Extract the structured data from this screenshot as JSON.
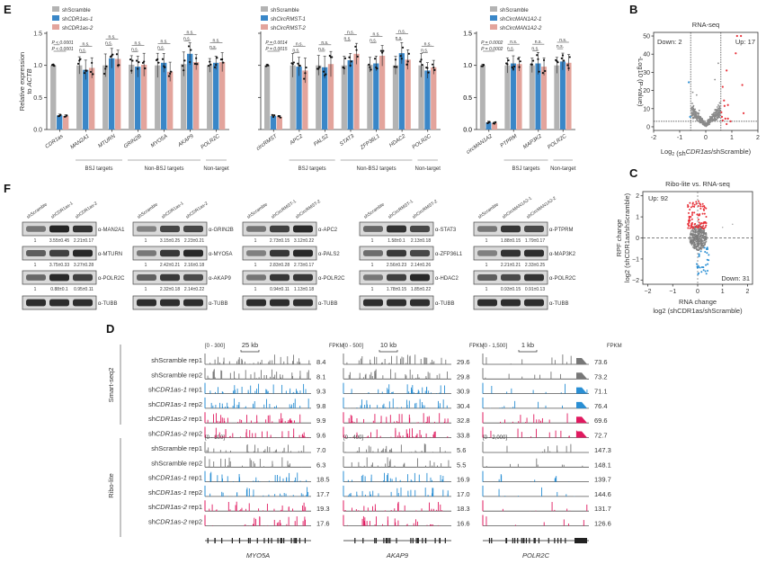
{
  "panels": {
    "E": "E",
    "B": "B",
    "C": "C",
    "F": "F",
    "D": "D"
  },
  "colors": {
    "scramble": "#b3b3b3",
    "kd1": "#3a87c8",
    "kd2": "#e3a49c",
    "up": "#e8323a",
    "down": "#2a8fd4",
    "ns": "#8a8a8a",
    "seq_kd1": "#2a8fd4",
    "seq_kd2": "#e0195f"
  },
  "chart_data": [
    {
      "id": "E1",
      "type": "bar",
      "ylabel": "Relative expression to ACTB",
      "ylabel_lines": [
        "Relative expression",
        "to ACTB"
      ],
      "ylim": [
        0,
        1.5
      ],
      "yticks": [
        "0.0",
        "0.5",
        "1.0",
        "1.5"
      ],
      "legend": [
        "shScramble",
        "shCDR1as-1",
        "shCDR1as-2"
      ],
      "categories": [
        "CDR1as",
        "MAN2A1",
        "MTURN",
        "GRIN2B",
        "MYO5A",
        "AKAP9",
        "POLR2C"
      ],
      "series": [
        {
          "name": "shScramble",
          "values": [
            1.0,
            1.0,
            1.0,
            1.01,
            1.0,
            1.02,
            1.0
          ]
        },
        {
          "name": "shCDR1as-1",
          "values": [
            0.22,
            0.93,
            1.11,
            0.98,
            1.04,
            1.18,
            1.04
          ]
        },
        {
          "name": "shCDR1as-2",
          "values": [
            0.21,
            0.96,
            1.1,
            1.01,
            0.9,
            1.05,
            1.05
          ]
        }
      ],
      "annotations": [
        "P < 0.0001",
        "P < 0.0001",
        "n.s."
      ],
      "groups": [
        {
          "label": "BSJ targets",
          "from": 1,
          "to": 2
        },
        {
          "label": "Non-BSJ targets",
          "from": 3,
          "to": 5
        },
        {
          "label": "Non-target",
          "from": 6,
          "to": 6
        }
      ]
    },
    {
      "id": "E2",
      "type": "bar",
      "ylim": [
        0,
        1.5
      ],
      "legend": [
        "shScramble",
        "shCircRMST-1",
        "shCircRMST-2"
      ],
      "categories": [
        "circRMST",
        "APC2",
        "PALS2",
        "STAT3",
        "ZFP36L1",
        "HDAC2",
        "POLR2C"
      ],
      "series": [
        {
          "name": "shScramble",
          "values": [
            1.0,
            1.0,
            1.0,
            1.0,
            1.01,
            1.0,
            1.0
          ]
        },
        {
          "name": "shCircRMST-1",
          "values": [
            0.21,
            0.98,
            0.97,
            1.08,
            1.03,
            1.19,
            0.92
          ]
        },
        {
          "name": "shCircRMST-2",
          "values": [
            0.2,
            0.92,
            1.02,
            1.18,
            1.15,
            1.09,
            0.97
          ]
        }
      ],
      "annotations": [
        "P = 0.0014",
        "P = 0.0015",
        "n.s."
      ],
      "groups": [
        {
          "label": "BSJ targets",
          "from": 1,
          "to": 2
        },
        {
          "label": "Non-BSJ targets",
          "from": 3,
          "to": 5
        },
        {
          "label": "Non-target",
          "from": 6,
          "to": 6
        }
      ]
    },
    {
      "id": "E3",
      "type": "bar",
      "ylim": [
        0,
        1.5
      ],
      "yticks": [
        "0.0",
        "0.5",
        "1.0",
        "1.5"
      ],
      "legend": [
        "shScramble",
        "shCircMAN1A2-1",
        "shCircMAN1A2-2"
      ],
      "categories": [
        "circMAN1A2",
        "PTPRM",
        "MAP3K2",
        "POLR2C"
      ],
      "series": [
        {
          "name": "shScramble",
          "values": [
            1.0,
            1.0,
            1.0,
            1.0
          ]
        },
        {
          "name": "shCircMAN1A2-1",
          "values": [
            0.11,
            1.03,
            1.03,
            1.06
          ]
        },
        {
          "name": "shCircMAN1A2-2",
          "values": [
            0.1,
            1.02,
            0.98,
            1.04
          ]
        }
      ],
      "annotations": [
        "P = 0.0002",
        "P = 0.0002",
        "n.s."
      ],
      "groups": [
        {
          "label": "BSJ targets",
          "from": 1,
          "to": 2
        },
        {
          "label": "Non-target",
          "from": 3,
          "to": 3
        }
      ]
    },
    {
      "id": "B",
      "type": "scatter",
      "title": "RNA-seq",
      "xlabel": "Log2 (shCDR1as/shScramble)",
      "ylabel": "-Log10 (P-value)",
      "xlim": [
        -2,
        2
      ],
      "ylim": [
        -2,
        52
      ],
      "xticks": [
        "-2",
        "-1",
        "0",
        "1",
        "2"
      ],
      "yticks": [
        "0",
        "10",
        "20",
        "30",
        "40",
        "50"
      ],
      "thresholds": {
        "x": [
          -0.58,
          0.58
        ],
        "y": 3
      },
      "labels": {
        "down": "Down: 2",
        "up": "Up: 17"
      },
      "up_points": [
        [
          1.2,
          50
        ],
        [
          1.35,
          50
        ],
        [
          1.15,
          40.5
        ],
        [
          0.8,
          31
        ],
        [
          1.4,
          23
        ],
        [
          0.65,
          22
        ],
        [
          0.7,
          14.5
        ],
        [
          0.85,
          12
        ],
        [
          0.72,
          11.5
        ],
        [
          1.45,
          7.5
        ],
        [
          0.6,
          8
        ],
        [
          0.62,
          5.5
        ],
        [
          0.75,
          4.5
        ],
        [
          0.85,
          4.5
        ],
        [
          0.65,
          3.5
        ],
        [
          0.8,
          1.5
        ],
        [
          0.95,
          3
        ]
      ],
      "down_points": [
        [
          -0.65,
          24.5
        ],
        [
          -0.6,
          5.5
        ]
      ]
    },
    {
      "id": "C",
      "type": "scatter",
      "title": "Ribo-lite vs. RNA-seq",
      "xlabel": "RNA change log2 (shCDR1as/shScramble)",
      "xlabel_lines": [
        "RNA change",
        "log2 (shCDR1as/shScramble)"
      ],
      "ylabel": "RPF change log2 (shCDR1as/shScramble)",
      "ylabel_lines": [
        "RPF change",
        "log2 (shCDR1as/shScramble)"
      ],
      "xlim": [
        -2.2,
        2.2
      ],
      "ylim": [
        -2.2,
        2.2
      ],
      "xticks": [
        "−2",
        "−1",
        "0",
        "1",
        "2"
      ],
      "yticks": [
        "−2",
        "−1",
        "0",
        "1",
        "2"
      ],
      "labels": {
        "up": "Up: 92",
        "down": "Down: 31"
      }
    }
  ],
  "western": {
    "blocks": [
      {
        "lanes": [
          "shScramble",
          "shCDR1as-1",
          "shCDR1as-2"
        ],
        "rows": [
          {
            "antibody": "α-MAN2A1",
            "quant": [
              "1",
              "3.55±0.45",
              "2.21±0.17"
            ]
          },
          {
            "antibody": "α-MTURN",
            "quant": [
              "1",
              "3.75±0.33",
              "3.27±0.28"
            ]
          },
          {
            "antibody": "α-POLR2C",
            "quant": [
              "1",
              "0.88±0.1",
              "0.95±0.11"
            ]
          },
          {
            "antibody": "α-TUBB",
            "quant": []
          }
        ]
      },
      {
        "lanes": [
          "shScramble",
          "shCDR1as-1",
          "shCDR1as-2"
        ],
        "rows": [
          {
            "antibody": "α-GRIN2B",
            "quant": [
              "1",
              "3.15±0.25",
              "2.23±0.21"
            ]
          },
          {
            "antibody": "α-MYO5A",
            "quant": [
              "1",
              "2.42±0.21",
              "2.16±0.18"
            ]
          },
          {
            "antibody": "α-AKAP9",
            "quant": [
              "1",
              "2.32±0.18",
              "2.14±0.22"
            ]
          },
          {
            "antibody": "α-TUBB",
            "quant": []
          }
        ]
      },
      {
        "lanes": [
          "shScramble",
          "shCircRMST-1",
          "shCircRMST-2"
        ],
        "rows": [
          {
            "antibody": "α-APC2",
            "quant": [
              "1",
              "2.73±0.15",
              "3.12±0.22"
            ]
          },
          {
            "antibody": "α-PALS2",
            "quant": [
              "1",
              "2.83±0.28",
              "2.73±0.17"
            ]
          },
          {
            "antibody": "α-POLR2C",
            "quant": [
              "1",
              "0.94±0.11",
              "1.13±0.18"
            ]
          },
          {
            "antibody": "α-TUBB",
            "quant": []
          }
        ]
      },
      {
        "lanes": [
          "shScramble",
          "shCircRMST-1",
          "shCircRMST-2"
        ],
        "rows": [
          {
            "antibody": "α-STAT3",
            "quant": [
              "1",
              "1.58±0.1",
              "2.13±0.18"
            ]
          },
          {
            "antibody": "α-ZFP36L1",
            "quant": [
              "1",
              "2.56±0.23",
              "2.14±0.26"
            ]
          },
          {
            "antibody": "α-HDAC2",
            "quant": [
              "1",
              "1.78±0.15",
              "1.85±0.22"
            ]
          },
          {
            "antibody": "α-TUBB",
            "quant": []
          }
        ]
      },
      {
        "lanes": [
          "shScramble",
          "shCircMAN1A2-1",
          "shCircMAN1A2-2"
        ],
        "rows": [
          {
            "antibody": "α-PTPRM",
            "quant": [
              "1",
              "1.88±0.15",
              "1.79±0.17"
            ]
          },
          {
            "antibody": "α-MAP3K2",
            "quant": [
              "1",
              "2.21±0.21",
              "2.33±0.25"
            ]
          },
          {
            "antibody": "α-POLR2C",
            "quant": [
              "1",
              "0.93±0.15",
              "0.91±0.13"
            ]
          },
          {
            "antibody": "α-TUBB",
            "quant": []
          }
        ]
      }
    ]
  },
  "tracks": {
    "sections": [
      {
        "name": "Smart-seq2"
      },
      {
        "name": "Ribo-lite"
      }
    ],
    "sample_labels": [
      {
        "pre": "sh",
        "it": "",
        "plain": "Scramble rep1",
        "full": "shScramble rep1"
      },
      {
        "pre": "sh",
        "it": "",
        "plain": "Scramble rep2",
        "full": "shScramble rep2"
      },
      {
        "pre": "sh",
        "it": "CDR1as-1",
        "plain": " rep1",
        "full": "shCDR1as-1 rep1"
      },
      {
        "pre": "sh",
        "it": "CDR1as-1",
        "plain": " rep2",
        "full": "shCDR1as-1 rep2"
      },
      {
        "pre": "sh",
        "it": "CDR1as-2",
        "plain": " rep1",
        "full": "shCDR1as-2 rep1"
      },
      {
        "pre": "sh",
        "it": "CDR1as-2",
        "plain": " rep2",
        "full": "shCDR1as-2 rep2"
      }
    ],
    "genes": [
      {
        "name": "MYO5A",
        "scale_bar": "25 kb",
        "smart_range": "[0 - 300]",
        "ribo_range": "[0 - 300]",
        "smart_fpkm": [
          "8.4",
          "8.1",
          "9.3",
          "9.8",
          "9.9",
          "9.6"
        ],
        "ribo_fpkm": [
          "7.0",
          "6.3",
          "18.5",
          "17.7",
          "19.3",
          "17.6"
        ]
      },
      {
        "name": "AKAP9",
        "scale_bar": "10 kb",
        "smart_range": "[0 - 500]",
        "ribo_range": "[0 - 400]",
        "smart_fpkm": [
          "29.6",
          "29.8",
          "30.9",
          "30.4",
          "32.8",
          "33.8"
        ],
        "ribo_fpkm": [
          "5.6",
          "5.5",
          "16.9",
          "17.0",
          "18.3",
          "16.6"
        ]
      },
      {
        "name": "POLR2C",
        "scale_bar": "1 kb",
        "smart_range": "[0 - 1,500]",
        "ribo_range": "[0 - 2,000]",
        "smart_fpkm": [
          "73.6",
          "73.2",
          "71.1",
          "76.4",
          "69.6",
          "72.7"
        ],
        "ribo_fpkm": [
          "147.3",
          "148.1",
          "139.7",
          "144.6",
          "131.7",
          "126.6"
        ]
      }
    ],
    "fpkm_label": "FPKM"
  }
}
